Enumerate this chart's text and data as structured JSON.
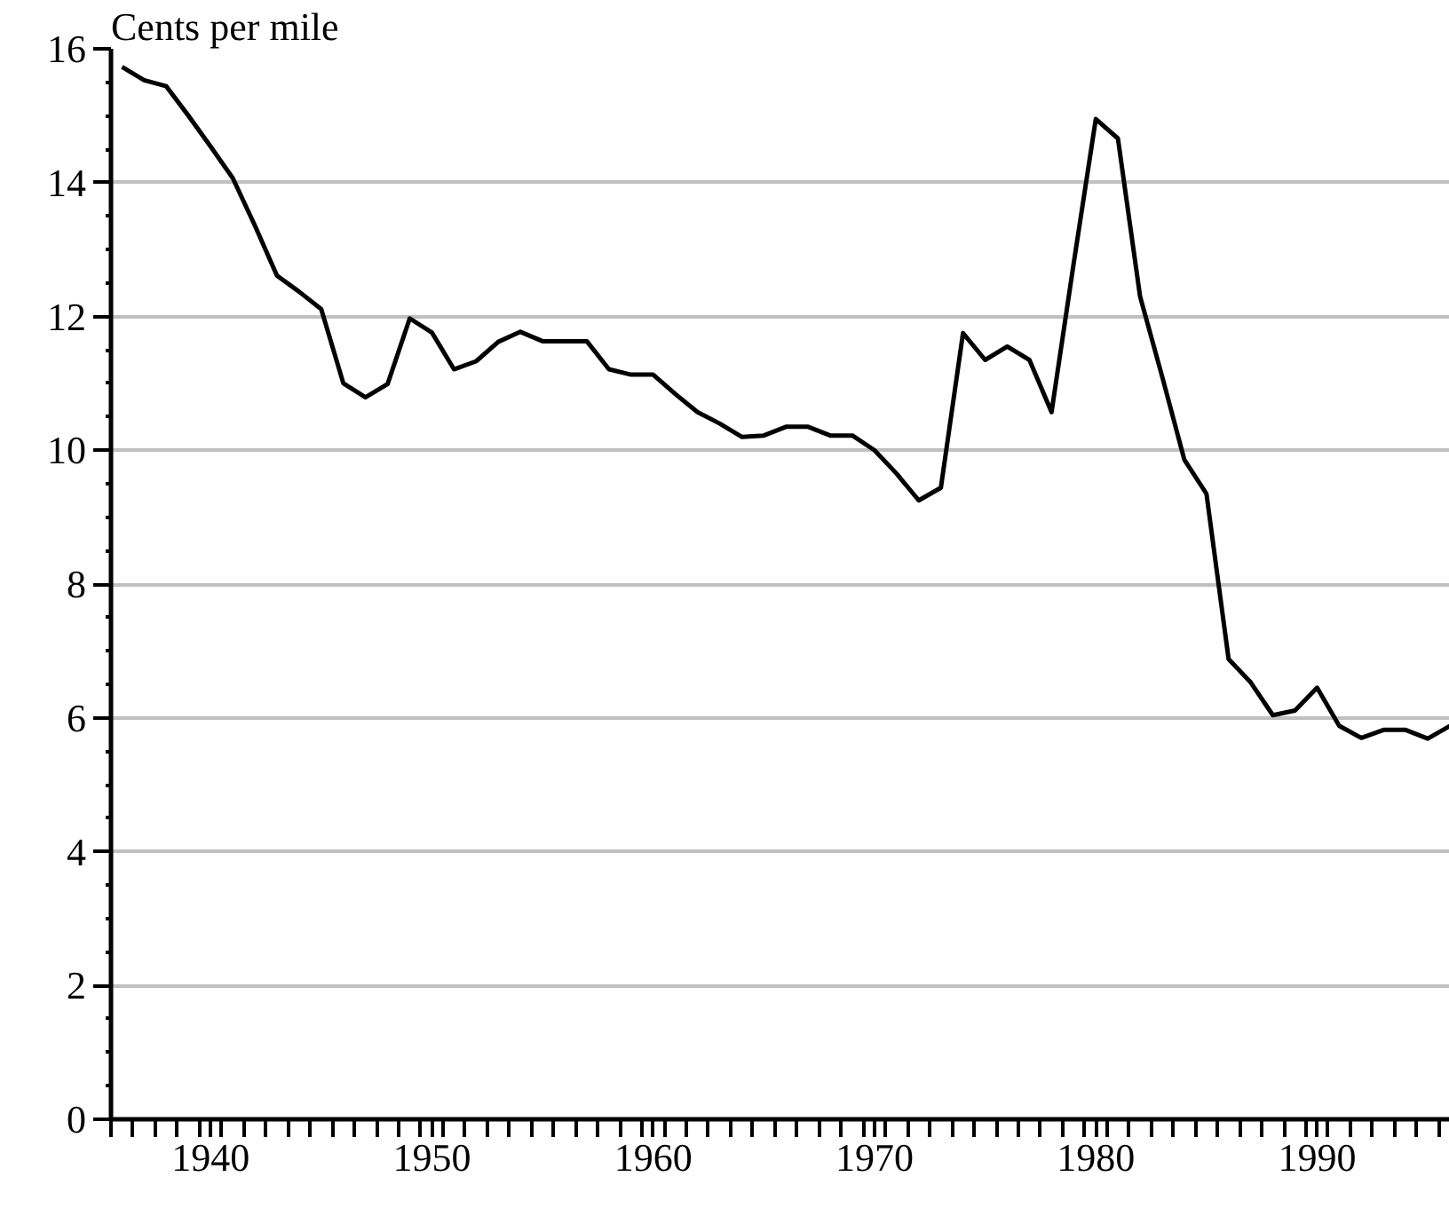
{
  "chart_data": {
    "type": "line",
    "ylabel": "Cents per mile",
    "x": [
      1936,
      1937,
      1938,
      1939,
      1940,
      1941,
      1942,
      1943,
      1944,
      1945,
      1946,
      1947,
      1948,
      1949,
      1950,
      1951,
      1952,
      1953,
      1954,
      1955,
      1956,
      1957,
      1958,
      1959,
      1960,
      1961,
      1962,
      1963,
      1964,
      1965,
      1966,
      1967,
      1968,
      1969,
      1970,
      1971,
      1972,
      1973,
      1974,
      1975,
      1976,
      1977,
      1978,
      1979,
      1980,
      1981,
      1982,
      1983,
      1984,
      1985,
      1986,
      1987,
      1988,
      1989,
      1990,
      1991,
      1992,
      1993,
      1994,
      1995,
      1996
    ],
    "series": [
      {
        "color": "#000000",
        "values": [
          15.73,
          15.53,
          15.44,
          15.0,
          14.54,
          14.07,
          13.36,
          12.61,
          12.37,
          12.11,
          11.0,
          10.79,
          10.99,
          11.97,
          11.76,
          11.21,
          11.33,
          11.62,
          11.77,
          11.63,
          11.63,
          11.63,
          11.21,
          11.13,
          11.13,
          10.84,
          10.57,
          10.4,
          10.2,
          10.22,
          10.35,
          10.35,
          10.22,
          10.22,
          10.0,
          9.65,
          9.25,
          9.44,
          11.75,
          11.35,
          11.55,
          11.35,
          10.57,
          12.79,
          14.95,
          14.66,
          12.3,
          11.1,
          9.86,
          9.35,
          6.88,
          6.53,
          6.04,
          6.11,
          6.45,
          5.88,
          5.7,
          5.82,
          5.82,
          5.69,
          5.88
        ]
      }
    ],
    "xlim": [
      1935.5,
      1996
    ],
    "xticks": [
      1940,
      1950,
      1960,
      1970,
      1980,
      1990,
      {
        "value": 1935.5,
        "label": null
      },
      {
        "value": 1936.5,
        "label": null
      },
      {
        "value": 1937.5,
        "label": null
      },
      {
        "value": 1938.5,
        "label": null
      },
      {
        "value": 1939.5,
        "label": null
      },
      {
        "value": 1940.5,
        "label": null
      },
      {
        "value": 1941.5,
        "label": null
      },
      {
        "value": 1942.5,
        "label": null
      },
      {
        "value": 1943.5,
        "label": null
      },
      {
        "value": 1944.5,
        "label": null
      },
      {
        "value": 1945.5,
        "label": null
      },
      {
        "value": 1946.5,
        "label": null
      },
      {
        "value": 1947.5,
        "label": null
      },
      {
        "value": 1948.5,
        "label": null
      },
      {
        "value": 1949.5,
        "label": null
      },
      {
        "value": 1950.5,
        "label": null
      },
      {
        "value": 1951.5,
        "label": null
      },
      {
        "value": 1952.5,
        "label": null
      },
      {
        "value": 1953.5,
        "label": null
      },
      {
        "value": 1954.5,
        "label": null
      },
      {
        "value": 1955.5,
        "label": null
      },
      {
        "value": 1956.5,
        "label": null
      },
      {
        "value": 1957.5,
        "label": null
      },
      {
        "value": 1958.5,
        "label": null
      },
      {
        "value": 1959.5,
        "label": null
      },
      {
        "value": 1960.5,
        "label": null
      },
      {
        "value": 1961.5,
        "label": null
      },
      {
        "value": 1962.5,
        "label": null
      },
      {
        "value": 1963.5,
        "label": null
      },
      {
        "value": 1964.5,
        "label": null
      },
      {
        "value": 1965.5,
        "label": null
      },
      {
        "value": 1966.5,
        "label": null
      },
      {
        "value": 1967.5,
        "label": null
      },
      {
        "value": 1968.5,
        "label": null
      },
      {
        "value": 1969.5,
        "label": null
      },
      {
        "value": 1970.5,
        "label": null
      },
      {
        "value": 1971.5,
        "label": null
      },
      {
        "value": 1972.5,
        "label": null
      },
      {
        "value": 1973.5,
        "label": null
      },
      {
        "value": 1974.5,
        "label": null
      },
      {
        "value": 1975.5,
        "label": null
      },
      {
        "value": 1976.5,
        "label": null
      },
      {
        "value": 1977.5,
        "label": null
      },
      {
        "value": 1978.5,
        "label": null
      },
      {
        "value": 1979.5,
        "label": null
      },
      {
        "value": 1980.5,
        "label": null
      },
      {
        "value": 1981.5,
        "label": null
      },
      {
        "value": 1982.5,
        "label": null
      },
      {
        "value": 1983.5,
        "label": null
      },
      {
        "value": 1984.5,
        "label": null
      },
      {
        "value": 1985.5,
        "label": null
      },
      {
        "value": 1986.5,
        "label": null
      },
      {
        "value": 1987.5,
        "label": null
      },
      {
        "value": 1988.5,
        "label": null
      },
      {
        "value": 1989.5,
        "label": null
      },
      {
        "value": 1990.5,
        "label": null
      },
      {
        "value": 1991.5,
        "label": null
      },
      {
        "value": 1992.5,
        "label": null
      },
      {
        "value": 1993.5,
        "label": null
      },
      {
        "value": 1994.5,
        "label": null
      },
      {
        "value": 1995.5,
        "label": null
      }
    ],
    "ylim": [
      0,
      16
    ],
    "yticks": [
      0,
      2,
      4,
      6,
      8,
      10,
      12,
      14,
      16,
      {
        "value": 0.5,
        "label": null
      },
      {
        "value": 1,
        "label": null
      },
      {
        "value": 1.5,
        "label": null
      },
      {
        "value": 2.5,
        "label": null
      },
      {
        "value": 3,
        "label": null
      },
      {
        "value": 3.5,
        "label": null
      },
      {
        "value": 4.5,
        "label": null
      },
      {
        "value": 5,
        "label": null
      },
      {
        "value": 5.5,
        "label": null
      },
      {
        "value": 6.5,
        "label": null
      },
      {
        "value": 7,
        "label": null
      },
      {
        "value": 7.5,
        "label": null
      },
      {
        "value": 8.5,
        "label": null
      },
      {
        "value": 9,
        "label": null
      },
      {
        "value": 9.5,
        "label": null
      },
      {
        "value": 10.5,
        "label": null
      },
      {
        "value": 11,
        "label": null
      },
      {
        "value": 11.5,
        "label": null
      },
      {
        "value": 12.5,
        "label": null
      },
      {
        "value": 13,
        "label": null
      },
      {
        "value": 13.5,
        "label": null
      },
      {
        "value": 14.5,
        "label": null
      },
      {
        "value": 15,
        "label": null
      },
      {
        "value": 15.5,
        "label": null
      }
    ],
    "grid": "y",
    "line_style": "solid",
    "marker": "none"
  }
}
